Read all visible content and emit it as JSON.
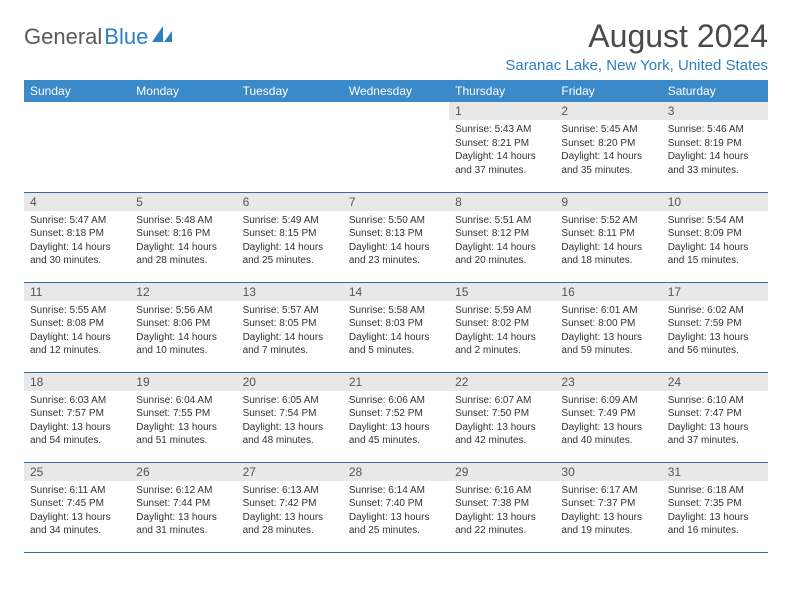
{
  "logo": {
    "text1": "General",
    "text2": "Blue"
  },
  "title": "August 2024",
  "location": "Saranac Lake, New York, United States",
  "colors": {
    "header_bg": "#3a89c9",
    "accent": "#2d7fc1",
    "daynum_bg": "#e8e8e8",
    "row_border": "#3a6a9a"
  },
  "weekdays": [
    "Sunday",
    "Monday",
    "Tuesday",
    "Wednesday",
    "Thursday",
    "Friday",
    "Saturday"
  ],
  "weeks": [
    [
      null,
      null,
      null,
      null,
      {
        "d": "1",
        "sr": "5:43 AM",
        "ss": "8:21 PM",
        "dl": "14 hours and 37 minutes."
      },
      {
        "d": "2",
        "sr": "5:45 AM",
        "ss": "8:20 PM",
        "dl": "14 hours and 35 minutes."
      },
      {
        "d": "3",
        "sr": "5:46 AM",
        "ss": "8:19 PM",
        "dl": "14 hours and 33 minutes."
      }
    ],
    [
      {
        "d": "4",
        "sr": "5:47 AM",
        "ss": "8:18 PM",
        "dl": "14 hours and 30 minutes."
      },
      {
        "d": "5",
        "sr": "5:48 AM",
        "ss": "8:16 PM",
        "dl": "14 hours and 28 minutes."
      },
      {
        "d": "6",
        "sr": "5:49 AM",
        "ss": "8:15 PM",
        "dl": "14 hours and 25 minutes."
      },
      {
        "d": "7",
        "sr": "5:50 AM",
        "ss": "8:13 PM",
        "dl": "14 hours and 23 minutes."
      },
      {
        "d": "8",
        "sr": "5:51 AM",
        "ss": "8:12 PM",
        "dl": "14 hours and 20 minutes."
      },
      {
        "d": "9",
        "sr": "5:52 AM",
        "ss": "8:11 PM",
        "dl": "14 hours and 18 minutes."
      },
      {
        "d": "10",
        "sr": "5:54 AM",
        "ss": "8:09 PM",
        "dl": "14 hours and 15 minutes."
      }
    ],
    [
      {
        "d": "11",
        "sr": "5:55 AM",
        "ss": "8:08 PM",
        "dl": "14 hours and 12 minutes."
      },
      {
        "d": "12",
        "sr": "5:56 AM",
        "ss": "8:06 PM",
        "dl": "14 hours and 10 minutes."
      },
      {
        "d": "13",
        "sr": "5:57 AM",
        "ss": "8:05 PM",
        "dl": "14 hours and 7 minutes."
      },
      {
        "d": "14",
        "sr": "5:58 AM",
        "ss": "8:03 PM",
        "dl": "14 hours and 5 minutes."
      },
      {
        "d": "15",
        "sr": "5:59 AM",
        "ss": "8:02 PM",
        "dl": "14 hours and 2 minutes."
      },
      {
        "d": "16",
        "sr": "6:01 AM",
        "ss": "8:00 PM",
        "dl": "13 hours and 59 minutes."
      },
      {
        "d": "17",
        "sr": "6:02 AM",
        "ss": "7:59 PM",
        "dl": "13 hours and 56 minutes."
      }
    ],
    [
      {
        "d": "18",
        "sr": "6:03 AM",
        "ss": "7:57 PM",
        "dl": "13 hours and 54 minutes."
      },
      {
        "d": "19",
        "sr": "6:04 AM",
        "ss": "7:55 PM",
        "dl": "13 hours and 51 minutes."
      },
      {
        "d": "20",
        "sr": "6:05 AM",
        "ss": "7:54 PM",
        "dl": "13 hours and 48 minutes."
      },
      {
        "d": "21",
        "sr": "6:06 AM",
        "ss": "7:52 PM",
        "dl": "13 hours and 45 minutes."
      },
      {
        "d": "22",
        "sr": "6:07 AM",
        "ss": "7:50 PM",
        "dl": "13 hours and 42 minutes."
      },
      {
        "d": "23",
        "sr": "6:09 AM",
        "ss": "7:49 PM",
        "dl": "13 hours and 40 minutes."
      },
      {
        "d": "24",
        "sr": "6:10 AM",
        "ss": "7:47 PM",
        "dl": "13 hours and 37 minutes."
      }
    ],
    [
      {
        "d": "25",
        "sr": "6:11 AM",
        "ss": "7:45 PM",
        "dl": "13 hours and 34 minutes."
      },
      {
        "d": "26",
        "sr": "6:12 AM",
        "ss": "7:44 PM",
        "dl": "13 hours and 31 minutes."
      },
      {
        "d": "27",
        "sr": "6:13 AM",
        "ss": "7:42 PM",
        "dl": "13 hours and 28 minutes."
      },
      {
        "d": "28",
        "sr": "6:14 AM",
        "ss": "7:40 PM",
        "dl": "13 hours and 25 minutes."
      },
      {
        "d": "29",
        "sr": "6:16 AM",
        "ss": "7:38 PM",
        "dl": "13 hours and 22 minutes."
      },
      {
        "d": "30",
        "sr": "6:17 AM",
        "ss": "7:37 PM",
        "dl": "13 hours and 19 minutes."
      },
      {
        "d": "31",
        "sr": "6:18 AM",
        "ss": "7:35 PM",
        "dl": "13 hours and 16 minutes."
      }
    ]
  ],
  "labels": {
    "sunrise": "Sunrise:",
    "sunset": "Sunset:",
    "daylight": "Daylight:"
  }
}
